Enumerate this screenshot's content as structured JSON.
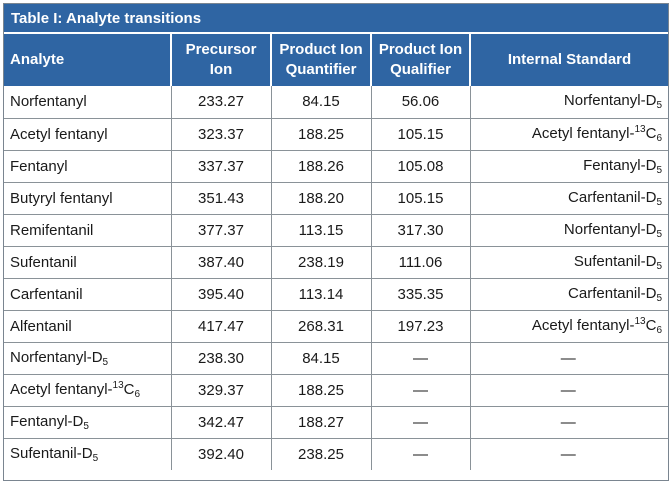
{
  "table": {
    "title": "Table I: Analyte transitions",
    "headers": [
      "Analyte",
      "Precursor Ion",
      "Product Ion Quantifier",
      "Product Ion Qualifier",
      "Internal Standard"
    ],
    "rows": [
      {
        "analyte": "Norfentanyl",
        "precursor": "233.27",
        "quantifier": "84.15",
        "qualifier": "56.06",
        "internal_standard": "Norfentanyl-D5"
      },
      {
        "analyte": "Acetyl fentanyl",
        "precursor": "323.37",
        "quantifier": "188.25",
        "qualifier": "105.15",
        "internal_standard": "Acetyl fentanyl-13C6"
      },
      {
        "analyte": "Fentanyl",
        "precursor": "337.37",
        "quantifier": "188.26",
        "qualifier": "105.08",
        "internal_standard": "Fentanyl-D5"
      },
      {
        "analyte": "Butyryl fentanyl",
        "precursor": "351.43",
        "quantifier": "188.20",
        "qualifier": "105.15",
        "internal_standard": "Carfentanil-D5"
      },
      {
        "analyte": "Remifentanil",
        "precursor": "377.37",
        "quantifier": "113.15",
        "qualifier": "317.30",
        "internal_standard": "Norfentanyl-D5"
      },
      {
        "analyte": "Sufentanil",
        "precursor": "387.40",
        "quantifier": "238.19",
        "qualifier": "111.06",
        "internal_standard": "Sufentanil-D5"
      },
      {
        "analyte": "Carfentanil",
        "precursor": "395.40",
        "quantifier": "113.14",
        "qualifier": "335.35",
        "internal_standard": "Carfentanil-D5"
      },
      {
        "analyte": "Alfentanil",
        "precursor": "417.47",
        "quantifier": "268.31",
        "qualifier": "197.23",
        "internal_standard": "Acetyl fentanyl-13C6"
      },
      {
        "analyte": "Norfentanyl-D5",
        "precursor": "238.30",
        "quantifier": "84.15",
        "qualifier": "—",
        "internal_standard": "—"
      },
      {
        "analyte": "Acetyl fentanyl-13C6",
        "precursor": "329.37",
        "quantifier": "188.25",
        "qualifier": "—",
        "internal_standard": "—"
      },
      {
        "analyte": "Fentanyl-D5",
        "precursor": "342.47",
        "quantifier": "188.27",
        "qualifier": "—",
        "internal_standard": "—"
      },
      {
        "analyte": "Sufentanil-D5",
        "precursor": "392.40",
        "quantifier": "238.25",
        "qualifier": "—",
        "internal_standard": "—"
      }
    ]
  }
}
